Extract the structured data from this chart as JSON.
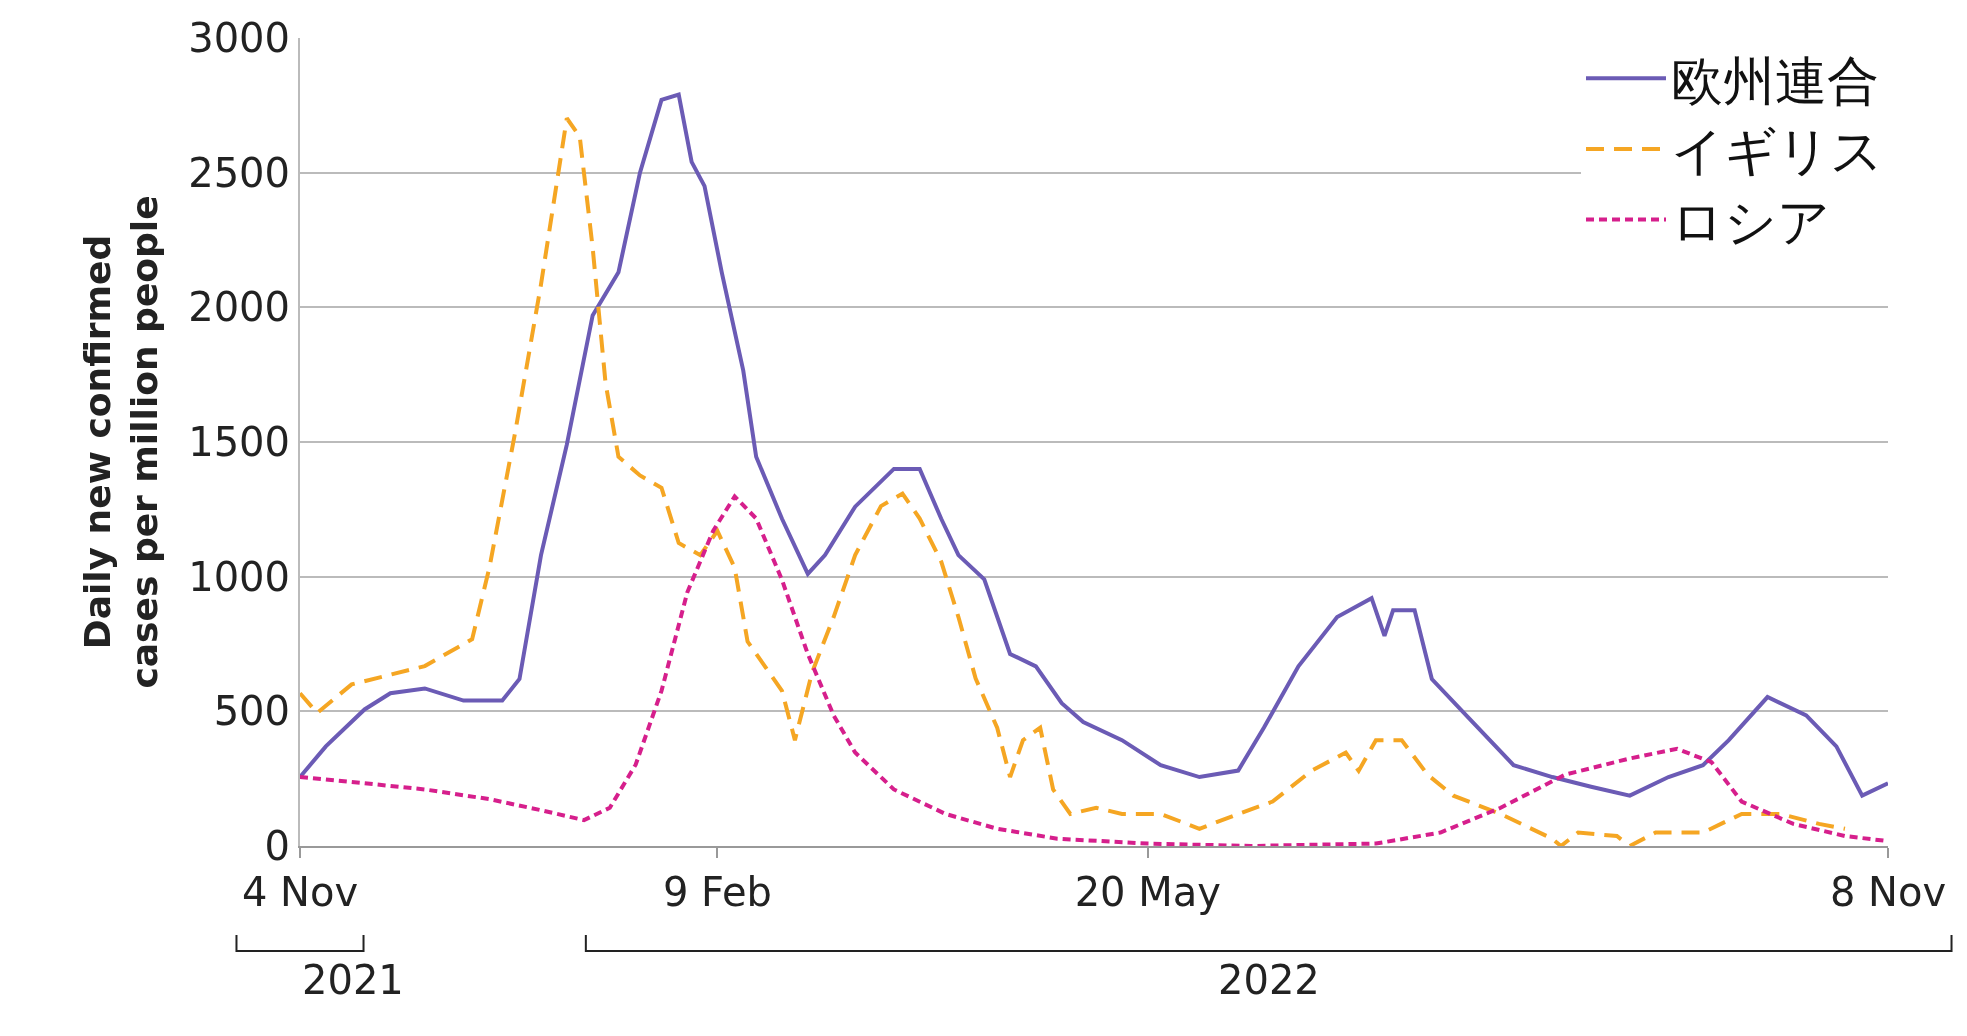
{
  "chart_data": {
    "type": "line",
    "ylabel": "Daily new confirmed\ncases per million people",
    "xlim": [
      "2021-11-04",
      "2022-11-08"
    ],
    "xticks": [
      {
        "value": "2021-11-04",
        "label": "4 Nov"
      },
      {
        "value": "2022-02-09",
        "label": "9 Feb"
      },
      {
        "value": "2022-05-20",
        "label": "20 May"
      },
      {
        "value": "2022-11-08",
        "label": "8 Nov"
      }
    ],
    "ylim": [
      0,
      3000
    ],
    "yticks": [
      0,
      500,
      1000,
      1500,
      2000,
      2500,
      3000
    ],
    "grid": "y",
    "legend": "top right",
    "annotations": [
      "2021",
      "2022"
    ],
    "series": [
      {
        "name": "欧州連合",
        "color": "#6b5bb5",
        "line_style": "solid",
        "x": [
          "2021-11-04",
          "2021-11-10",
          "2021-11-19",
          "2021-11-25",
          "2021-12-03",
          "2021-12-12",
          "2021-12-21",
          "2021-12-25",
          "2021-12-30",
          "2022-01-05",
          "2022-01-11",
          "2022-01-17",
          "2022-01-22",
          "2022-01-27",
          "2022-01-31",
          "2022-02-03",
          "2022-02-06",
          "2022-02-10",
          "2022-02-15",
          "2022-02-18",
          "2022-02-24",
          "2022-03-02",
          "2022-03-06",
          "2022-03-13",
          "2022-03-22",
          "2022-03-28",
          "2022-04-02",
          "2022-04-06",
          "2022-04-12",
          "2022-04-18",
          "2022-04-24",
          "2022-04-30",
          "2022-05-05",
          "2022-05-14",
          "2022-05-23",
          "2022-06-01",
          "2022-06-10",
          "2022-06-16",
          "2022-06-24",
          "2022-07-03",
          "2022-07-11",
          "2022-07-14",
          "2022-07-16",
          "2022-07-21",
          "2022-07-25",
          "2022-08-02",
          "2022-08-13",
          "2022-08-22",
          "2022-08-31",
          "2022-09-09",
          "2022-09-18",
          "2022-09-26",
          "2022-10-02",
          "2022-10-11",
          "2022-10-20",
          "2022-10-27",
          "2022-11-02",
          "2022-11-08"
        ],
        "values": [
          256,
          370,
          507,
          567,
          585,
          540,
          540,
          620,
          1080,
          1490,
          1970,
          2130,
          2500,
          2770,
          2790,
          2540,
          2450,
          2130,
          1765,
          1445,
          1215,
          1010,
          1080,
          1260,
          1400,
          1400,
          1215,
          1080,
          990,
          713,
          667,
          530,
          460,
          393,
          300,
          256,
          280,
          440,
          667,
          850,
          920,
          780,
          875,
          875,
          620,
          485,
          300,
          256,
          220,
          187,
          256,
          300,
          393,
          553,
          485,
          370,
          187,
          233
        ]
      },
      {
        "name": "イギリス",
        "color": "#f5a623",
        "line_style": "dashed",
        "x": [
          "2021-11-04",
          "2021-11-08",
          "2021-11-16",
          "2021-11-25",
          "2021-12-03",
          "2021-12-14",
          "2021-12-18",
          "2021-12-24",
          "2021-12-30",
          "2022-01-05",
          "2022-01-08",
          "2022-01-11",
          "2022-01-14",
          "2022-01-17",
          "2022-01-22",
          "2022-01-27",
          "2022-01-31",
          "2022-02-05",
          "2022-02-09",
          "2022-02-13",
          "2022-02-16",
          "2022-02-21",
          "2022-02-24",
          "2022-02-27",
          "2022-03-03",
          "2022-03-08",
          "2022-03-13",
          "2022-03-19",
          "2022-03-24",
          "2022-03-28",
          "2022-04-02",
          "2022-04-06",
          "2022-04-10",
          "2022-04-15",
          "2022-04-18",
          "2022-04-21",
          "2022-04-25",
          "2022-04-28",
          "2022-05-02",
          "2022-05-08",
          "2022-05-14",
          "2022-05-23",
          "2022-06-01",
          "2022-06-10",
          "2022-06-18",
          "2022-06-27",
          "2022-07-05",
          "2022-07-08",
          "2022-07-12",
          "2022-07-18",
          "2022-07-24",
          "2022-07-30",
          "2022-08-10",
          "2022-08-22",
          "2022-08-24",
          "2022-08-28",
          "2022-09-06",
          "2022-09-09",
          "2022-09-15",
          "2022-09-26",
          "2022-10-05",
          "2022-10-14",
          "2022-10-23",
          "2022-10-29"
        ],
        "values": [
          567,
          494,
          600,
          636,
          668,
          768,
          1033,
          1536,
          2085,
          2702,
          2634,
          2222,
          1719,
          1445,
          1376,
          1330,
          1125,
          1080,
          1170,
          1033,
          759,
          645,
          576,
          393,
          645,
          850,
          1080,
          1262,
          1308,
          1216,
          1056,
          850,
          622,
          439,
          256,
          393,
          439,
          210,
          119,
          142,
          119,
          119,
          64,
          119,
          165,
          279,
          347,
          279,
          393,
          393,
          265,
          187,
          119,
          27,
          0,
          50,
          37,
          0,
          50,
          50,
          119,
          119,
          82,
          64
        ]
      },
      {
        "name": "ロシア",
        "color": "#d61f8c",
        "line_style": "dotted",
        "x": [
          "2021-11-04",
          "2021-11-19",
          "2021-12-03",
          "2021-12-18",
          "2021-12-30",
          "2022-01-09",
          "2022-01-15",
          "2022-01-21",
          "2022-01-27",
          "2022-02-02",
          "2022-02-08",
          "2022-02-13",
          "2022-02-18",
          "2022-02-24",
          "2022-03-02",
          "2022-03-08",
          "2022-03-13",
          "2022-03-22",
          "2022-04-03",
          "2022-04-15",
          "2022-04-29",
          "2022-05-20",
          "2022-06-13",
          "2022-07-12",
          "2022-07-27",
          "2022-08-10",
          "2022-08-25",
          "2022-09-09",
          "2022-09-20",
          "2022-09-28",
          "2022-10-05",
          "2022-10-17",
          "2022-10-29",
          "2022-11-08"
        ],
        "values": [
          256,
          233,
          210,
          174,
          133,
          96,
          142,
          302,
          576,
          942,
          1170,
          1298,
          1216,
          988,
          713,
          485,
          347,
          210,
          119,
          64,
          27,
          9,
          0,
          9,
          50,
          142,
          265,
          325,
          361,
          311,
          165,
          82,
          37,
          18
        ]
      }
    ]
  }
}
